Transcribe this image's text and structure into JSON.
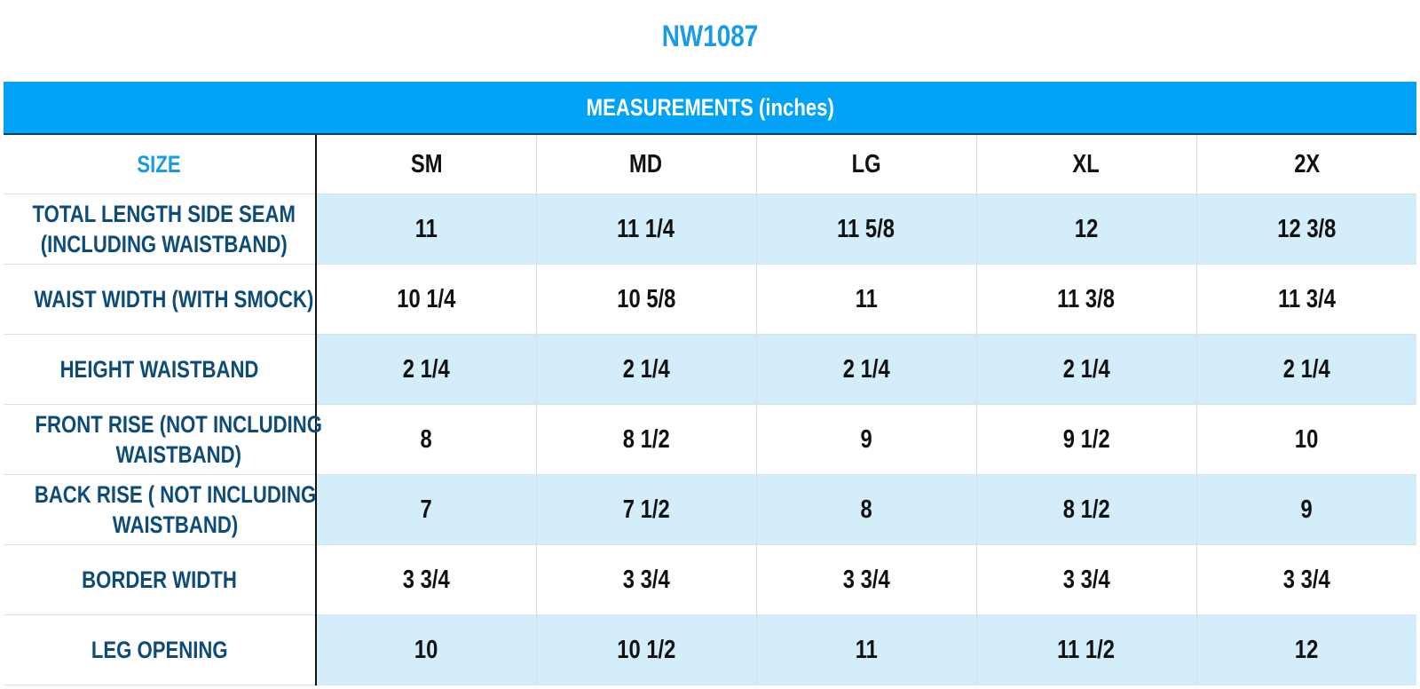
{
  "title": "NW1087",
  "table_heading": "MEASUREMENTS (inches)",
  "size_label": "SIZE",
  "sizes": [
    "SM",
    "MD",
    "LG",
    "XL",
    "2X"
  ],
  "rows": [
    {
      "label_lines": [
        "TOTAL LENGTH SIDE SEAM",
        "(INCLUDING WAISTBAND)"
      ],
      "values": [
        "11",
        "11 1/4",
        "11 5/8",
        "12",
        "12 3/8"
      ]
    },
    {
      "label_lines": [
        "WAIST WIDTH (WITH SMOCK)"
      ],
      "values": [
        "10 1/4",
        "10 5/8",
        "11",
        "11 3/8",
        "11 3/4"
      ]
    },
    {
      "label_lines": [
        "HEIGHT WAISTBAND"
      ],
      "values": [
        "2 1/4",
        "2 1/4",
        "2 1/4",
        "2 1/4",
        "2 1/4"
      ]
    },
    {
      "label_lines": [
        "FRONT RISE (NOT INCLUDING",
        "WAISTBAND)"
      ],
      "values": [
        "8",
        "8 1/2",
        "9",
        "9 1/2",
        "10"
      ]
    },
    {
      "label_lines": [
        "BACK RISE ( NOT INCLUDING",
        "WAISTBAND)"
      ],
      "values": [
        "7",
        "7 1/2",
        "8",
        "8 1/2",
        "9"
      ]
    },
    {
      "label_lines": [
        "BORDER WIDTH"
      ],
      "values": [
        "3 3/4",
        "3 3/4",
        "3 3/4",
        "3 3/4",
        "3 3/4"
      ]
    },
    {
      "label_lines": [
        "LEG OPENING"
      ],
      "values": [
        "10",
        "10 1/2",
        "11",
        "11 1/2",
        "12"
      ]
    }
  ],
  "colors": {
    "title": "#1a9be6",
    "banner": "#02a2f7",
    "label_text": "#0d4b78",
    "shaded_row": "#d4edfb"
  }
}
